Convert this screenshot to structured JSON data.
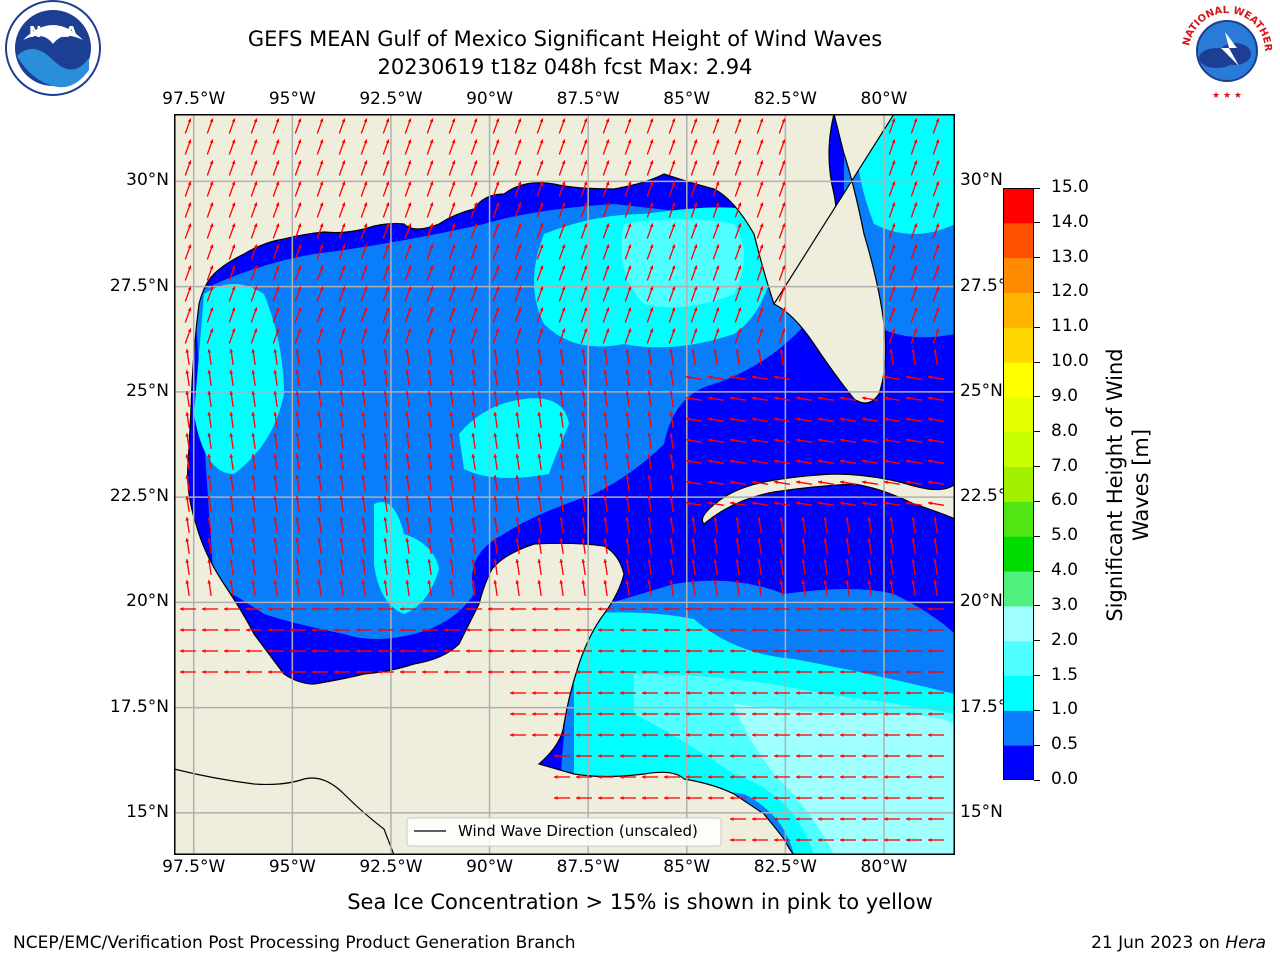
{
  "title": {
    "line1": "GEFS MEAN Gulf of Mexico Significant Height of Wind Waves",
    "line2": "20230619 t18z 048h fcst   Max: 2.94"
  },
  "logos": {
    "noaa": {
      "text": "NOAA",
      "ring_text": "NATIONAL OCEANIC AND ATMOSPHERIC ADMINISTRATION · U.S. DEPARTMENT OF COMMERCE",
      "icon": "noaa-logo"
    },
    "nws": {
      "ring_text": "NATIONAL WEATHER SERVICE",
      "icon": "nws-logo"
    }
  },
  "map": {
    "lon_ticks": [
      "97.5°W",
      "95°W",
      "92.5°W",
      "90°W",
      "87.5°W",
      "85°W",
      "82.5°W",
      "80°W"
    ],
    "lat_ticks_left": [
      "30°N",
      "27.5°N",
      "25°N",
      "22.5°N",
      "20°N",
      "17.5°N",
      "15°N"
    ],
    "lat_ticks_right": [
      "30°N",
      "27.5°",
      "25°N",
      "22.5°",
      "20°N",
      "17.5°",
      "15°N"
    ],
    "legend_label": "Wind Wave Direction (unscaled)",
    "arrow_color": "#ff0000",
    "land_color": "#efeedc"
  },
  "colorbar": {
    "label": "Significant Height of Wind Waves [m]",
    "label_line1": "Significant Height of Wind",
    "label_line2": "Waves [m]",
    "ticks": [
      "15.0",
      "14.0",
      "13.0",
      "12.0",
      "11.0",
      "10.0",
      "9.0",
      "8.0",
      "7.0",
      "6.0",
      "5.0",
      "4.0",
      "3.0",
      "2.0",
      "1.5",
      "1.0",
      "0.5",
      "0.0"
    ],
    "colors": [
      "#0000ff",
      "#0a7dfa",
      "#00ffff",
      "#50ffff",
      "#a0ffff",
      "#50f07e",
      "#00dc00",
      "#50e614",
      "#a0f000",
      "#c8ff00",
      "#e6ff00",
      "#ffff00",
      "#ffd700",
      "#ffb400",
      "#ff8c00",
      "#ff5000",
      "#ff0000"
    ]
  },
  "chart_data": {
    "type": "heatmap",
    "title": "GEFS MEAN Gulf of Mexico Significant Height of Wind Waves",
    "subtitle": "20230619 t18z 048h fcst   Max: 2.94",
    "variable": "Significant Height of Wind Waves [m]",
    "max_value": 2.94,
    "lon_range": [
      -98,
      -78.2
    ],
    "lat_range": [
      14,
      31.6
    ],
    "levels": [
      0.0,
      0.5,
      1.0,
      1.5,
      2.0,
      3.0,
      4.0,
      5.0,
      6.0,
      7.0,
      8.0,
      9.0,
      10.0,
      11.0,
      12.0,
      13.0,
      14.0,
      15.0
    ],
    "grid": true
  },
  "note": "Sea Ice Concentration > 15% is shown in pink to yellow",
  "footer": {
    "left": "NCEP/EMC/Verification Post Processing Product Generation Branch",
    "right_date": "21 Jun 2023 on ",
    "right_host": "Hera"
  }
}
